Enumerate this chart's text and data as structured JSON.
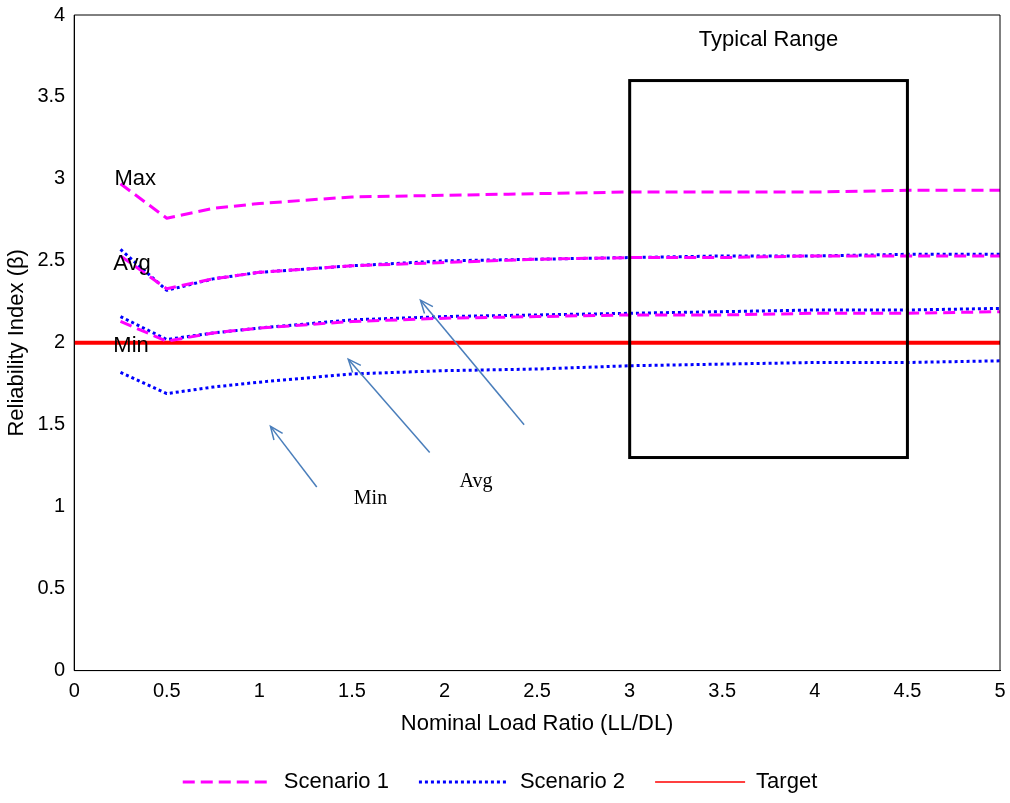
{
  "chart_data": {
    "type": "line",
    "xlabel": "Nominal Load Ratio (LL/DL)",
    "ylabel": "Reliability Index (β)",
    "x": [
      0.25,
      0.5,
      0.75,
      1,
      1.5,
      2,
      2.5,
      3,
      3.5,
      4,
      4.5,
      5
    ],
    "xlim": [
      0,
      5
    ],
    "xticks": [
      0,
      0.5,
      1,
      1.5,
      2,
      2.5,
      3,
      3.5,
      4,
      4.5,
      5
    ],
    "ylim": [
      0,
      4
    ],
    "yticks": [
      0,
      0.5,
      1,
      1.5,
      2,
      2.5,
      3,
      3.5,
      4
    ],
    "grid": false,
    "legend": "bottom",
    "marker": "none",
    "series": [
      {
        "name": "Scenario 1",
        "color": "#ff00ff",
        "line_style": "dashed",
        "values": [
          2.97,
          2.76,
          2.82,
          2.85,
          2.89,
          2.9,
          2.91,
          2.92,
          2.92,
          2.92,
          2.93,
          2.93
        ]
      },
      {
        "color": "#ff00ff",
        "line_style": "dashed",
        "values": [
          2.53,
          2.33,
          2.39,
          2.43,
          2.47,
          2.49,
          2.51,
          2.52,
          2.52,
          2.53,
          2.53,
          2.53
        ]
      },
      {
        "color": "#ff00ff",
        "line_style": "dashed",
        "values": [
          2.13,
          2.01,
          2.06,
          2.09,
          2.13,
          2.15,
          2.16,
          2.17,
          2.17,
          2.18,
          2.18,
          2.19
        ]
      },
      {
        "name": "Scenario 2",
        "color": "#0000ff",
        "line_style": "dotted",
        "values": [
          2.57,
          2.32,
          2.39,
          2.43,
          2.47,
          2.5,
          2.51,
          2.52,
          2.53,
          2.53,
          2.54,
          2.54
        ]
      },
      {
        "color": "#0000ff",
        "line_style": "dotted",
        "values": [
          2.16,
          2.02,
          2.06,
          2.09,
          2.14,
          2.16,
          2.17,
          2.18,
          2.19,
          2.2,
          2.2,
          2.21
        ]
      },
      {
        "color": "#0000ff",
        "line_style": "dotted",
        "values": [
          1.82,
          1.69,
          1.73,
          1.76,
          1.81,
          1.83,
          1.84,
          1.86,
          1.87,
          1.88,
          1.88,
          1.89
        ]
      },
      {
        "name": "Target",
        "color": "#ff0000",
        "line_style": "solid",
        "x": [
          0,
          5
        ],
        "values": [
          2,
          2
        ]
      }
    ],
    "annotations": [
      "Typical Range",
      "Max",
      {
        "text": "Avg",
        "x": 0.33,
        "y": 2.48
      },
      {
        "text": "Min",
        "x": 0.33,
        "y": 1.98
      },
      "Avg",
      "Min"
    ]
  }
}
